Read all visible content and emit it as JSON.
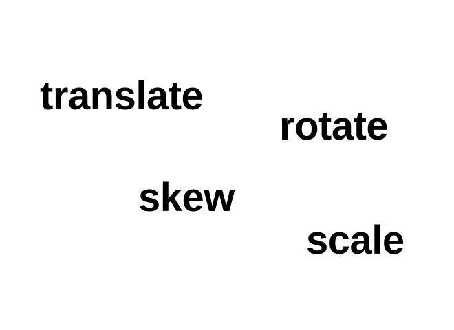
{
  "words": {
    "translate": "translate",
    "rotate": "rotate",
    "skew": "skew",
    "scale": "scale"
  },
  "colors": {
    "background": "#ffffff",
    "text": "#000000"
  }
}
